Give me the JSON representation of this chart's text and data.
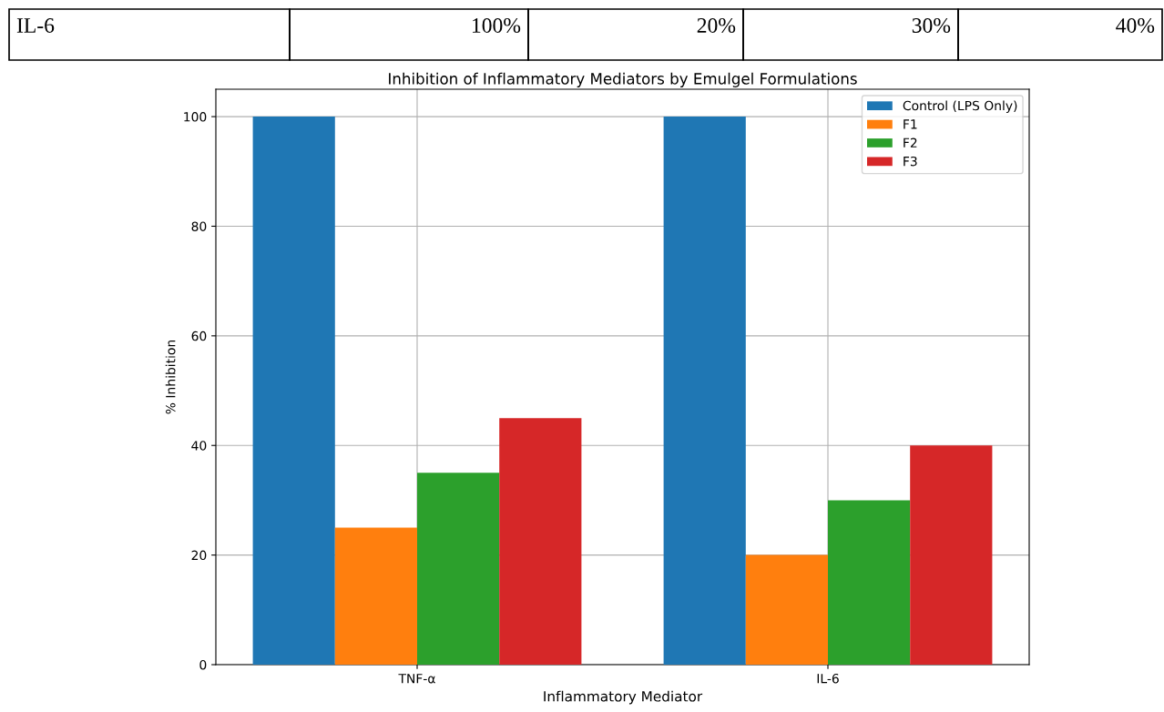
{
  "chart_data": {
    "type": "bar",
    "title": "Inhibition of Inflammatory Mediators by Emulgel Formulations",
    "xlabel": "Inflammatory Mediator",
    "ylabel": "% Inhibition",
    "categories": [
      "TNF-α",
      "IL-6"
    ],
    "series": [
      {
        "name": "Control (LPS Only)",
        "color": "#1f77b4",
        "values": [
          100,
          100
        ]
      },
      {
        "name": "F1",
        "color": "#ff7f0e",
        "values": [
          25,
          20
        ]
      },
      {
        "name": "F2",
        "color": "#2ca02c",
        "values": [
          35,
          30
        ]
      },
      {
        "name": "F3",
        "color": "#d62728",
        "values": [
          45,
          40
        ]
      }
    ],
    "ylim": [
      0,
      105
    ],
    "yticks": [
      0,
      20,
      40,
      60,
      80,
      100
    ],
    "grid": true,
    "legend": "top right",
    "annotations": [
      "IL-6",
      "100%",
      "20%",
      "30%",
      "40%"
    ]
  }
}
